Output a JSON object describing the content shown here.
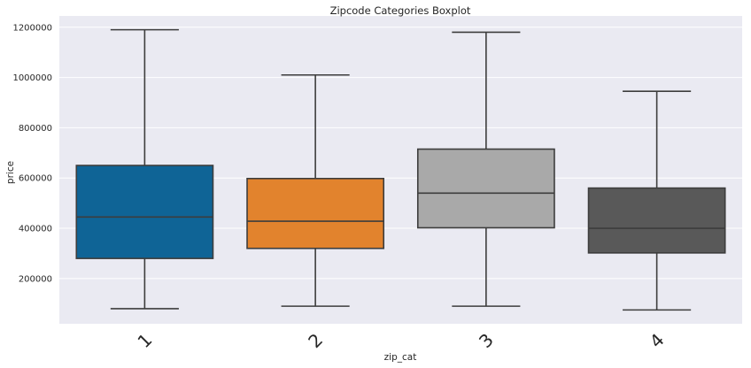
{
  "chart_data": {
    "type": "boxplot",
    "title": "Zipcode Categories Boxplot",
    "xlabel": "zip_cat",
    "ylabel": "price",
    "ylim": [
      20000,
      1245000
    ],
    "yticks": [
      200000,
      400000,
      600000,
      800000,
      1000000,
      1200000
    ],
    "ytick_labels": [
      "200000",
      "400000",
      "600000",
      "800000",
      "1000000",
      "1200000"
    ],
    "grid": true,
    "categories": [
      "1",
      "2",
      "3",
      "4"
    ],
    "colors": [
      "#0f6496",
      "#e2832d",
      "#a9a9a9",
      "#595959"
    ],
    "boxes": [
      {
        "category": "1",
        "whisker_low": 80000,
        "q1": 280000,
        "median": 445000,
        "q3": 650000,
        "whisker_high": 1190000
      },
      {
        "category": "2",
        "whisker_low": 90000,
        "q1": 320000,
        "median": 428000,
        "q3": 598000,
        "whisker_high": 1010000
      },
      {
        "category": "3",
        "whisker_low": 90000,
        "q1": 402000,
        "median": 540000,
        "q3": 715000,
        "whisker_high": 1180000
      },
      {
        "category": "4",
        "whisker_low": 75000,
        "q1": 302000,
        "median": 400000,
        "q3": 560000,
        "whisker_high": 945000
      }
    ]
  }
}
